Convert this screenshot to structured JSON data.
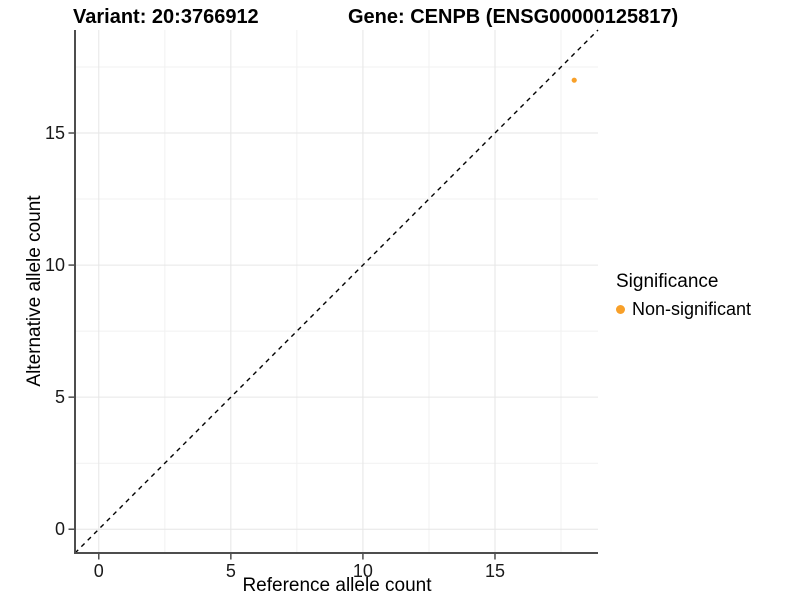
{
  "chart_data": {
    "type": "scatter",
    "titles": {
      "left": "Variant: 20:3766912",
      "right": "Gene: CENPB (ENSG00000125817)"
    },
    "xlabel": "Reference allele count",
    "ylabel": "Alternative allele count",
    "xlim": [
      -0.9,
      18.9
    ],
    "ylim": [
      -0.9,
      18.9
    ],
    "x_ticks": [
      0,
      5,
      10,
      15
    ],
    "y_ticks": [
      0,
      5,
      10,
      15
    ],
    "x_minor_gridlines": [
      2.5,
      7.5,
      12.5,
      17.5
    ],
    "y_minor_gridlines": [
      2.5,
      7.5,
      12.5,
      17.5
    ],
    "grid": true,
    "series": [
      {
        "name": "Non-significant",
        "color": "#F8A029",
        "points": [
          {
            "x": 18,
            "y": 17
          }
        ]
      }
    ],
    "identity_line": {
      "style": "dashed",
      "slope": 1,
      "intercept": 0,
      "color": "#000000"
    },
    "legend": {
      "title": "Significance",
      "position": "right",
      "entries": [
        {
          "label": "Non-significant",
          "color": "#F8A029"
        }
      ]
    },
    "colors": {
      "axis_line": "#4D4D4D",
      "grid_major": "#E6E6E6",
      "grid_minor": "#F1F1F1",
      "tick_text": "#1A1A1A",
      "background": "#FFFFFF"
    }
  }
}
